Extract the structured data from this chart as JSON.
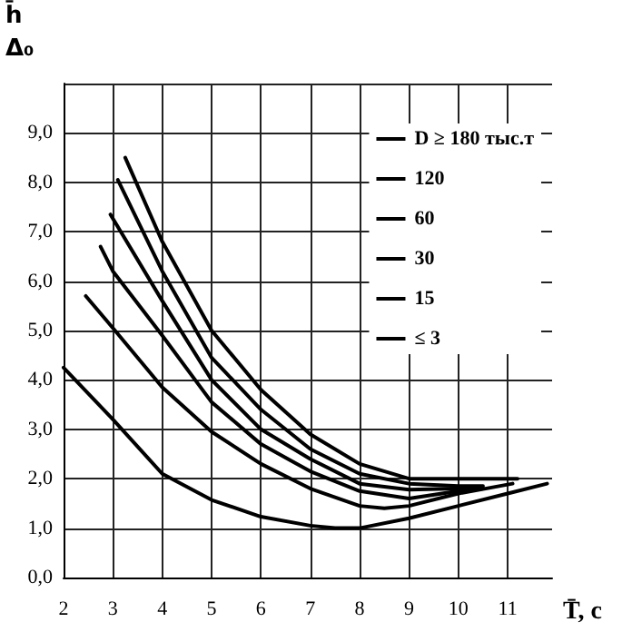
{
  "chart_data": {
    "type": "line",
    "xlabel": "T̄, c",
    "ylabel": "h̄\nΔ₀",
    "xlim": [
      2,
      11.9
    ],
    "xticks": [
      2,
      3,
      4,
      5,
      6,
      7,
      8,
      9,
      10,
      11
    ],
    "ylim": [
      0,
      10
    ],
    "yticks": [
      {
        "value": 0,
        "label": "0,0"
      },
      {
        "value": 1,
        "label": "1,0"
      },
      {
        "value": 2,
        "label": "2,0"
      },
      {
        "value": 3,
        "label": "3,0"
      },
      {
        "value": 4,
        "label": "4,0"
      },
      {
        "value": 5,
        "label": "5,0"
      },
      {
        "value": 6,
        "label": "6,0"
      },
      {
        "value": 7,
        "label": "7,0"
      },
      {
        "value": 8,
        "label": "8,0"
      },
      {
        "value": 9,
        "label": "9,0"
      },
      {
        "value": 10,
        "label": null
      }
    ],
    "grid": true,
    "legend": "top right",
    "marker": "none",
    "line_style": "solid",
    "series": [
      {
        "name": "D ≥ 180 тыс.т",
        "color": "#000000",
        "x": [
          3.25,
          4,
          5,
          6,
          7,
          8,
          9,
          10,
          11.2
        ],
        "values": [
          8.5,
          6.8,
          5.0,
          3.8,
          2.9,
          2.3,
          2.0,
          2.0,
          2.0
        ]
      },
      {
        "name": "120",
        "color": "#000000",
        "x": [
          3.1,
          4,
          5,
          6,
          7,
          8,
          9,
          10,
          10.5
        ],
        "values": [
          8.05,
          6.2,
          4.45,
          3.4,
          2.6,
          2.1,
          1.9,
          1.85,
          1.85
        ]
      },
      {
        "name": "60",
        "color": "#000000",
        "x": [
          2.95,
          4,
          5,
          6,
          7,
          8,
          9,
          10,
          10.5
        ],
        "values": [
          7.35,
          5.6,
          4.0,
          3.0,
          2.4,
          1.9,
          1.78,
          1.8,
          1.8
        ]
      },
      {
        "name": "30",
        "color": "#000000",
        "x": [
          2.75,
          3,
          4,
          5,
          6,
          7,
          8,
          9,
          10,
          10.5
        ],
        "values": [
          6.7,
          6.2,
          4.9,
          3.55,
          2.7,
          2.15,
          1.75,
          1.6,
          1.75,
          1.8
        ]
      },
      {
        "name": "15",
        "color": "#000000",
        "x": [
          2.45,
          3,
          4,
          5,
          6,
          7,
          8,
          8.5,
          9,
          10,
          11.1
        ],
        "values": [
          5.7,
          5.05,
          3.85,
          2.95,
          2.3,
          1.8,
          1.45,
          1.4,
          1.45,
          1.7,
          1.9
        ]
      },
      {
        "name": "≤ 3",
        "color": "#000000",
        "x": [
          2,
          3,
          4,
          5,
          6,
          7,
          7.5,
          8,
          9,
          10,
          11,
          11.8
        ],
        "values": [
          4.25,
          3.2,
          2.1,
          1.57,
          1.23,
          1.05,
          1.0,
          1.0,
          1.2,
          1.45,
          1.7,
          1.9
        ]
      }
    ]
  }
}
